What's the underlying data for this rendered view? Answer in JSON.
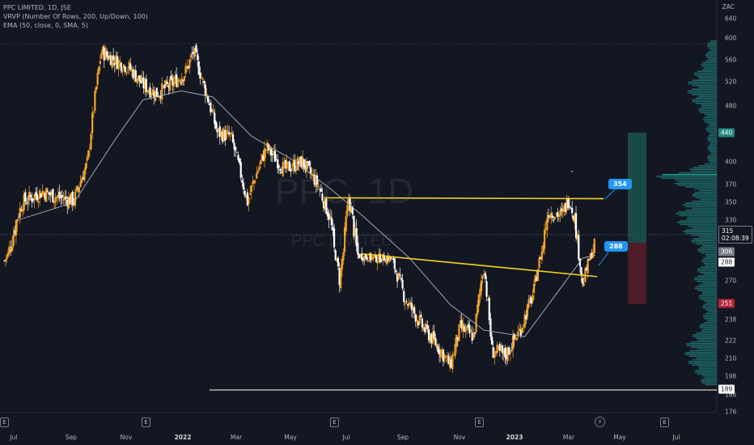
{
  "legend": {
    "symbol_line": "PPC LIMITED, 1D, JSE",
    "vrvp_line": "VRVP (Number Of Rows, 200, Up/Down, 100)",
    "ema_line": "EMA (50, close, 0, SMA, 5)"
  },
  "watermark": {
    "ticker": "PPC, 1D",
    "name": "PPC LIMITED"
  },
  "y_axis": {
    "currency": "ZAC",
    "ticks": [
      "640",
      "600",
      "560",
      "520",
      "480",
      "440",
      "400",
      "370",
      "350",
      "330",
      "306",
      "288",
      "270",
      "251",
      "238",
      "222",
      "210",
      "198",
      "189",
      "186",
      "176"
    ]
  },
  "price_tags": {
    "last_price": "315",
    "countdown": "02:08:39",
    "entry": "306",
    "target_level": "440",
    "stop_level": "251",
    "support_level": "189",
    "wedge_level": "288"
  },
  "callouts": {
    "upper": "354",
    "lower": "288"
  },
  "x_axis": {
    "labels": [
      "Jul",
      "Sep",
      "Nov",
      "2022",
      "Mar",
      "May",
      "Jul",
      "Sep",
      "Nov",
      "2023",
      "Mar",
      "May",
      "Jul"
    ],
    "event_marker_label": "E",
    "flash_icon": "⚡"
  },
  "colors": {
    "background": "#131722",
    "up_candle": "#f7a325",
    "down_candle": "#ffffff",
    "ema": "#b2b5be",
    "trendline": "#f5d327",
    "target_zone": "#1e5c53",
    "stop_zone": "#5b1d2a",
    "volume_profile": "#26a69a"
  },
  "chart_data": {
    "type": "candlestick",
    "title": "PPC LIMITED, 1D, JSE",
    "y_range": [
      176,
      640
    ],
    "x_range": [
      "2021-06",
      "2023-07"
    ],
    "close_path": [
      [
        "2021-06-20",
        290
      ],
      [
        "2021-07-10",
        350
      ],
      [
        "2021-08-01",
        362
      ],
      [
        "2021-08-20",
        355
      ],
      [
        "2021-09-05",
        352
      ],
      [
        "2021-09-20",
        400
      ],
      [
        "2021-10-05",
        575
      ],
      [
        "2021-10-20",
        560
      ],
      [
        "2021-11-05",
        545
      ],
      [
        "2021-11-20",
        515
      ],
      [
        "2021-12-05",
        500
      ],
      [
        "2021-12-20",
        515
      ],
      [
        "2022-01-05",
        535
      ],
      [
        "2022-01-15",
        575
      ],
      [
        "2022-01-25",
        520
      ],
      [
        "2022-02-10",
        440
      ],
      [
        "2022-02-25",
        435
      ],
      [
        "2022-03-15",
        350
      ],
      [
        "2022-04-05",
        420
      ],
      [
        "2022-04-25",
        390
      ],
      [
        "2022-05-15",
        400
      ],
      [
        "2022-06-01",
        370
      ],
      [
        "2022-06-15",
        330
      ],
      [
        "2022-06-25",
        270
      ],
      [
        "2022-07-05",
        355
      ],
      [
        "2022-07-15",
        300
      ],
      [
        "2022-08-01",
        295
      ],
      [
        "2022-08-20",
        295
      ],
      [
        "2022-09-05",
        255
      ],
      [
        "2022-09-25",
        232
      ],
      [
        "2022-10-15",
        215
      ],
      [
        "2022-10-25",
        205
      ],
      [
        "2022-11-05",
        232
      ],
      [
        "2022-11-20",
        225
      ],
      [
        "2022-12-01",
        285
      ],
      [
        "2022-12-10",
        215
      ],
      [
        "2022-12-25",
        212
      ],
      [
        "2023-01-10",
        230
      ],
      [
        "2023-01-25",
        260
      ],
      [
        "2023-02-10",
        340
      ],
      [
        "2023-02-25",
        335
      ],
      [
        "2023-03-05",
        355
      ],
      [
        "2023-03-12",
        330
      ],
      [
        "2023-03-20",
        265
      ],
      [
        "2023-03-28",
        295
      ],
      [
        "2023-04-03",
        315
      ]
    ],
    "ema": {
      "name": "EMA (50, close, 0, SMA, 5)",
      "points": [
        [
          "2021-07-05",
          330
        ],
        [
          "2021-09-05",
          350
        ],
        [
          "2021-10-20",
          430
        ],
        [
          "2021-11-20",
          490
        ],
        [
          "2022-01-01",
          505
        ],
        [
          "2022-02-05",
          495
        ],
        [
          "2022-03-20",
          435
        ],
        [
          "2022-05-01",
          405
        ],
        [
          "2022-06-15",
          365
        ],
        [
          "2022-07-20",
          335
        ],
        [
          "2022-09-10",
          295
        ],
        [
          "2022-10-25",
          250
        ],
        [
          "2022-12-01",
          230
        ],
        [
          "2023-01-15",
          225
        ],
        [
          "2023-02-20",
          260
        ],
        [
          "2023-03-20",
          295
        ],
        [
          "2023-04-03",
          300
        ]
      ]
    },
    "trendlines": [
      {
        "label": "354",
        "from": [
          "2022-06-10",
          355
        ],
        "to": [
          "2023-04-05",
          354
        ]
      },
      {
        "label": "288",
        "from": [
          "2022-07-20",
          302
        ],
        "to": [
          "2023-04-05",
          274
        ]
      },
      {
        "label": "189",
        "from": [
          "2021-09-20",
          189
        ],
        "to": [
          "2023-07-31",
          189
        ]
      }
    ],
    "position": {
      "entry": 306,
      "target": 440,
      "stop": 251,
      "from": "2023-04-20",
      "to": "2023-05-05"
    },
    "last_price": 315
  }
}
